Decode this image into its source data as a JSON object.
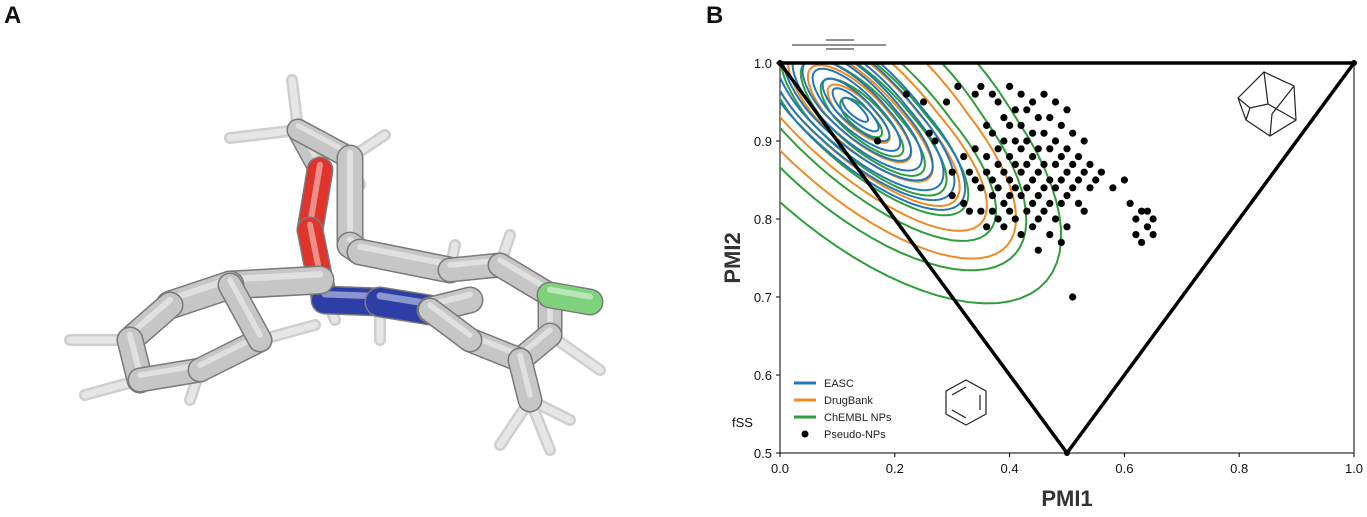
{
  "panels": {
    "a_label": "A",
    "b_label": "B"
  },
  "molecule": {
    "colors": {
      "carbon": "#c6c6c6",
      "oxygen": "#e0332b",
      "nitrogen": "#2d3fa6",
      "chlorine": "#7ed27c",
      "hydrogen": "#e6e6e6"
    }
  },
  "chart_data": {
    "type": "scatter",
    "xlabel": "PMI1",
    "ylabel": "PMI2",
    "xlim": [
      0.0,
      1.0
    ],
    "ylim": [
      0.5,
      1.0
    ],
    "xticks": [
      "0.0",
      "0.2",
      "0.4",
      "0.6",
      "0.8",
      "1.0"
    ],
    "yticks": [
      "0.5",
      "0.6",
      "0.7",
      "0.8",
      "0.9",
      "1.0"
    ],
    "annotation": "fSS",
    "grid": false,
    "legend_position": "bottom-left",
    "triangle": [
      [
        0.0,
        1.0
      ],
      [
        0.5,
        0.5
      ],
      [
        1.0,
        1.0
      ]
    ],
    "series": [
      {
        "name": "EASC",
        "kind": "density-contour",
        "color": "#2378b5",
        "center": [
          0.13,
          0.94
        ],
        "levels": [
          [
            0.025,
            0.012
          ],
          [
            0.045,
            0.02
          ],
          [
            0.065,
            0.03
          ],
          [
            0.085,
            0.041
          ],
          [
            0.105,
            0.052
          ],
          [
            0.125,
            0.063
          ],
          [
            0.145,
            0.074
          ],
          [
            0.165,
            0.085
          ],
          [
            0.185,
            0.096
          ],
          [
            0.205,
            0.107
          ]
        ]
      },
      {
        "name": "DrugBank",
        "kind": "density-contour",
        "color": "#f08a24",
        "center": [
          0.135,
          0.935
        ],
        "levels": [
          [
            0.06,
            0.03
          ],
          [
            0.1,
            0.05
          ],
          [
            0.14,
            0.07
          ],
          [
            0.19,
            0.095
          ],
          [
            0.24,
            0.125
          ],
          [
            0.29,
            0.175
          ]
        ]
      },
      {
        "name": "ChEMBL NPs",
        "kind": "density-contour",
        "color": "#2f9e3a",
        "center": [
          0.14,
          0.93
        ],
        "levels": [
          [
            0.04,
            0.022
          ],
          [
            0.08,
            0.04
          ],
          [
            0.12,
            0.06
          ],
          [
            0.16,
            0.082
          ],
          [
            0.2,
            0.105
          ],
          [
            0.25,
            0.14
          ],
          [
            0.3,
            0.2
          ],
          [
            0.36,
            0.255
          ]
        ]
      },
      {
        "name": "Pseudo-NPs",
        "kind": "points",
        "color": "#000000",
        "points": [
          [
            0.17,
            0.9
          ],
          [
            0.22,
            0.96
          ],
          [
            0.25,
            0.95
          ],
          [
            0.26,
            0.91
          ],
          [
            0.27,
            0.9
          ],
          [
            0.29,
            0.95
          ],
          [
            0.3,
            0.86
          ],
          [
            0.3,
            0.83
          ],
          [
            0.31,
            0.97
          ],
          [
            0.32,
            0.88
          ],
          [
            0.32,
            0.82
          ],
          [
            0.33,
            0.86
          ],
          [
            0.33,
            0.81
          ],
          [
            0.34,
            0.96
          ],
          [
            0.34,
            0.89
          ],
          [
            0.34,
            0.85
          ],
          [
            0.35,
            0.97
          ],
          [
            0.35,
            0.84
          ],
          [
            0.35,
            0.81
          ],
          [
            0.36,
            0.92
          ],
          [
            0.36,
            0.88
          ],
          [
            0.36,
            0.86
          ],
          [
            0.36,
            0.79
          ],
          [
            0.37,
            0.96
          ],
          [
            0.37,
            0.91
          ],
          [
            0.37,
            0.85
          ],
          [
            0.37,
            0.83
          ],
          [
            0.37,
            0.81
          ],
          [
            0.38,
            0.95
          ],
          [
            0.38,
            0.89
          ],
          [
            0.38,
            0.87
          ],
          [
            0.38,
            0.84
          ],
          [
            0.38,
            0.8
          ],
          [
            0.39,
            0.93
          ],
          [
            0.39,
            0.9
          ],
          [
            0.39,
            0.86
          ],
          [
            0.39,
            0.82
          ],
          [
            0.39,
            0.79
          ],
          [
            0.4,
            0.97
          ],
          [
            0.4,
            0.92
          ],
          [
            0.4,
            0.88
          ],
          [
            0.4,
            0.85
          ],
          [
            0.4,
            0.83
          ],
          [
            0.4,
            0.81
          ],
          [
            0.41,
            0.94
          ],
          [
            0.41,
            0.9
          ],
          [
            0.41,
            0.87
          ],
          [
            0.41,
            0.84
          ],
          [
            0.41,
            0.8
          ],
          [
            0.42,
            0.96
          ],
          [
            0.42,
            0.92
          ],
          [
            0.42,
            0.89
          ],
          [
            0.42,
            0.86
          ],
          [
            0.42,
            0.83
          ],
          [
            0.42,
            0.78
          ],
          [
            0.43,
            0.94
          ],
          [
            0.43,
            0.9
          ],
          [
            0.43,
            0.87
          ],
          [
            0.43,
            0.84
          ],
          [
            0.43,
            0.81
          ],
          [
            0.44,
            0.95
          ],
          [
            0.44,
            0.91
          ],
          [
            0.44,
            0.88
          ],
          [
            0.44,
            0.85
          ],
          [
            0.44,
            0.82
          ],
          [
            0.44,
            0.79
          ],
          [
            0.45,
            0.93
          ],
          [
            0.45,
            0.89
          ],
          [
            0.45,
            0.86
          ],
          [
            0.45,
            0.83
          ],
          [
            0.45,
            0.8
          ],
          [
            0.45,
            0.76
          ],
          [
            0.46,
            0.96
          ],
          [
            0.46,
            0.91
          ],
          [
            0.46,
            0.87
          ],
          [
            0.46,
            0.84
          ],
          [
            0.46,
            0.81
          ],
          [
            0.47,
            0.93
          ],
          [
            0.47,
            0.89
          ],
          [
            0.47,
            0.85
          ],
          [
            0.47,
            0.82
          ],
          [
            0.47,
            0.78
          ],
          [
            0.48,
            0.95
          ],
          [
            0.48,
            0.9
          ],
          [
            0.48,
            0.87
          ],
          [
            0.48,
            0.84
          ],
          [
            0.48,
            0.8
          ],
          [
            0.49,
            0.92
          ],
          [
            0.49,
            0.88
          ],
          [
            0.49,
            0.85
          ],
          [
            0.49,
            0.82
          ],
          [
            0.49,
            0.77
          ],
          [
            0.5,
            0.94
          ],
          [
            0.5,
            0.89
          ],
          [
            0.5,
            0.86
          ],
          [
            0.5,
            0.83
          ],
          [
            0.5,
            0.79
          ],
          [
            0.51,
            0.91
          ],
          [
            0.51,
            0.87
          ],
          [
            0.51,
            0.84
          ],
          [
            0.51,
            0.7
          ],
          [
            0.52,
            0.88
          ],
          [
            0.52,
            0.85
          ],
          [
            0.52,
            0.82
          ],
          [
            0.53,
            0.9
          ],
          [
            0.53,
            0.86
          ],
          [
            0.53,
            0.81
          ],
          [
            0.54,
            0.87
          ],
          [
            0.54,
            0.84
          ],
          [
            0.55,
            0.85
          ],
          [
            0.56,
            0.86
          ],
          [
            0.58,
            0.84
          ],
          [
            0.6,
            0.85
          ],
          [
            0.61,
            0.82
          ],
          [
            0.62,
            0.78
          ],
          [
            0.62,
            0.8
          ],
          [
            0.63,
            0.81
          ],
          [
            0.63,
            0.77
          ],
          [
            0.64,
            0.79
          ],
          [
            0.64,
            0.81
          ],
          [
            0.65,
            0.78
          ],
          [
            0.65,
            0.8
          ]
        ]
      }
    ]
  }
}
